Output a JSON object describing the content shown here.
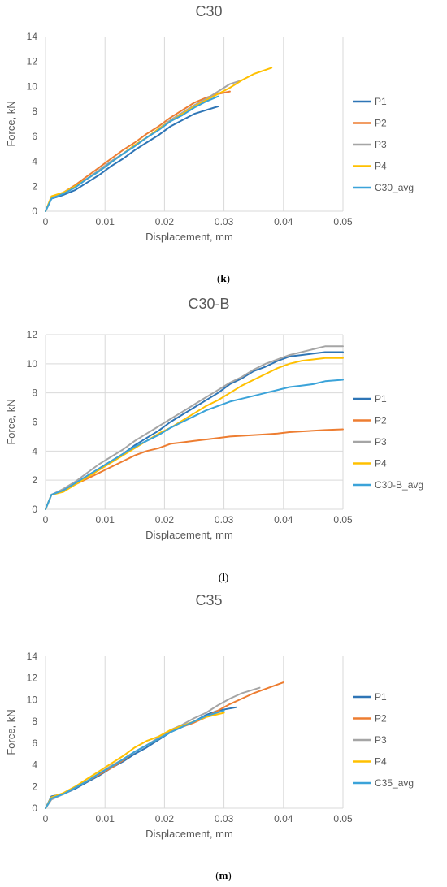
{
  "captions": [
    "k",
    "l",
    "m"
  ],
  "chart_data": [
    {
      "type": "line",
      "title": "C30",
      "xlabel": "Displacement, mm",
      "ylabel": "Force, kN",
      "xlim": [
        0,
        0.05
      ],
      "ylim": [
        0,
        14
      ],
      "xticks": [
        0,
        0.01,
        0.02,
        0.03,
        0.04,
        0.05
      ],
      "yticks": [
        0,
        2,
        4,
        6,
        8,
        10,
        12,
        14
      ],
      "xtick_labels": [
        "0",
        "0.01",
        "0.02",
        "0.03",
        "0.04",
        "0.05"
      ],
      "ytick_labels": [
        "0",
        "2",
        "4",
        "6",
        "8",
        "10",
        "12",
        "14"
      ],
      "grid": "vertical",
      "legend": "right",
      "series": [
        {
          "name": "P1",
          "color": "#2E75B6",
          "x": [
            0,
            0.001,
            0.003,
            0.005,
            0.007,
            0.009,
            0.011,
            0.013,
            0.015,
            0.017,
            0.019,
            0.021,
            0.023,
            0.025,
            0.027,
            0.029
          ],
          "y": [
            0,
            1.0,
            1.3,
            1.7,
            2.3,
            2.9,
            3.6,
            4.2,
            4.9,
            5.5,
            6.1,
            6.8,
            7.3,
            7.8,
            8.1,
            8.4
          ]
        },
        {
          "name": "P2",
          "color": "#ED7D31",
          "x": [
            0,
            0.001,
            0.003,
            0.005,
            0.007,
            0.009,
            0.011,
            0.013,
            0.015,
            0.017,
            0.019,
            0.021,
            0.023,
            0.025,
            0.027,
            0.029,
            0.031
          ],
          "y": [
            0,
            1.1,
            1.5,
            2.1,
            2.8,
            3.5,
            4.2,
            4.9,
            5.5,
            6.2,
            6.8,
            7.5,
            8.1,
            8.7,
            9.1,
            9.4,
            9.6
          ]
        },
        {
          "name": "P3",
          "color": "#A5A5A5",
          "x": [
            0,
            0.001,
            0.003,
            0.005,
            0.007,
            0.009,
            0.011,
            0.013,
            0.015,
            0.017,
            0.019,
            0.021,
            0.023,
            0.025,
            0.027,
            0.029,
            0.031,
            0.033
          ],
          "y": [
            0,
            1.1,
            1.5,
            2.0,
            2.6,
            3.3,
            4.0,
            4.6,
            5.3,
            5.9,
            6.6,
            7.3,
            7.9,
            8.5,
            9.0,
            9.6,
            10.2,
            10.5
          ]
        },
        {
          "name": "P4",
          "color": "#FFC000",
          "x": [
            0,
            0.001,
            0.003,
            0.005,
            0.007,
            0.009,
            0.011,
            0.013,
            0.015,
            0.017,
            0.019,
            0.021,
            0.023,
            0.025,
            0.027,
            0.029,
            0.031,
            0.033,
            0.035,
            0.038
          ],
          "y": [
            0,
            1.2,
            1.5,
            2.0,
            2.6,
            3.2,
            3.9,
            4.6,
            5.3,
            5.9,
            6.6,
            7.2,
            7.8,
            8.4,
            8.9,
            9.4,
            9.9,
            10.5,
            11.0,
            11.5
          ]
        },
        {
          "name": "C30_avg",
          "color": "#3BA3D9",
          "x": [
            0,
            0.001,
            0.003,
            0.005,
            0.007,
            0.009,
            0.011,
            0.013,
            0.015,
            0.017,
            0.019,
            0.021,
            0.023,
            0.025,
            0.027,
            0.029
          ],
          "y": [
            0,
            1.0,
            1.4,
            1.9,
            2.6,
            3.2,
            3.9,
            4.6,
            5.2,
            5.9,
            6.5,
            7.2,
            7.7,
            8.3,
            8.8,
            9.2
          ]
        }
      ]
    },
    {
      "type": "line",
      "title": "C30-B",
      "xlabel": "Displacement, mm",
      "ylabel": "Force, kN",
      "xlim": [
        0,
        0.05
      ],
      "ylim": [
        0,
        12
      ],
      "xticks": [
        0,
        0.01,
        0.02,
        0.03,
        0.04,
        0.05
      ],
      "yticks": [
        0,
        2,
        4,
        6,
        8,
        10,
        12
      ],
      "xtick_labels": [
        "0",
        "0.01",
        "0.02",
        "0.03",
        "0.04",
        "0.05"
      ],
      "ytick_labels": [
        "0",
        "2",
        "4",
        "6",
        "8",
        "10",
        "12"
      ],
      "grid": "both",
      "legend": "right",
      "series": [
        {
          "name": "P1",
          "color": "#2E75B6",
          "x": [
            0,
            0.001,
            0.003,
            0.005,
            0.007,
            0.009,
            0.011,
            0.013,
            0.015,
            0.017,
            0.019,
            0.021,
            0.023,
            0.025,
            0.027,
            0.029,
            0.031,
            0.033,
            0.035,
            0.037,
            0.039,
            0.041,
            0.043,
            0.045,
            0.047,
            0.05
          ],
          "y": [
            0,
            1.0,
            1.3,
            1.8,
            2.3,
            2.8,
            3.3,
            3.8,
            4.4,
            4.9,
            5.4,
            6.0,
            6.5,
            7.0,
            7.5,
            8.0,
            8.6,
            9.0,
            9.5,
            9.8,
            10.2,
            10.5,
            10.6,
            10.7,
            10.8,
            10.8
          ]
        },
        {
          "name": "P2",
          "color": "#ED7D31",
          "x": [
            0,
            0.001,
            0.003,
            0.005,
            0.007,
            0.009,
            0.011,
            0.013,
            0.015,
            0.017,
            0.019,
            0.021,
            0.023,
            0.025,
            0.027,
            0.029,
            0.031,
            0.033,
            0.035,
            0.037,
            0.039,
            0.041,
            0.043,
            0.045,
            0.047,
            0.05
          ],
          "y": [
            0,
            1.0,
            1.3,
            1.7,
            2.1,
            2.5,
            2.9,
            3.3,
            3.7,
            4.0,
            4.2,
            4.5,
            4.6,
            4.7,
            4.8,
            4.9,
            5.0,
            5.05,
            5.1,
            5.15,
            5.2,
            5.3,
            5.35,
            5.4,
            5.45,
            5.5
          ]
        },
        {
          "name": "P3",
          "color": "#A5A5A5",
          "x": [
            0,
            0.001,
            0.003,
            0.005,
            0.007,
            0.009,
            0.011,
            0.013,
            0.015,
            0.017,
            0.019,
            0.021,
            0.023,
            0.025,
            0.027,
            0.029,
            0.031,
            0.033,
            0.035,
            0.037,
            0.039,
            0.041,
            0.043,
            0.045,
            0.047,
            0.05
          ],
          "y": [
            0,
            1.0,
            1.4,
            1.9,
            2.5,
            3.1,
            3.6,
            4.1,
            4.7,
            5.2,
            5.7,
            6.2,
            6.7,
            7.2,
            7.7,
            8.2,
            8.7,
            9.1,
            9.6,
            10.0,
            10.3,
            10.6,
            10.8,
            11.0,
            11.2,
            11.2
          ]
        },
        {
          "name": "P4",
          "color": "#FFC000",
          "x": [
            0,
            0.001,
            0.003,
            0.005,
            0.007,
            0.009,
            0.011,
            0.013,
            0.015,
            0.017,
            0.019,
            0.021,
            0.023,
            0.025,
            0.027,
            0.029,
            0.031,
            0.033,
            0.035,
            0.037,
            0.039,
            0.041,
            0.043,
            0.045,
            0.047,
            0.05
          ],
          "y": [
            0,
            1.0,
            1.2,
            1.7,
            2.2,
            2.7,
            3.2,
            3.7,
            4.2,
            4.7,
            5.2,
            5.6,
            6.1,
            6.6,
            7.1,
            7.5,
            8.0,
            8.5,
            8.9,
            9.3,
            9.7,
            10.0,
            10.2,
            10.3,
            10.4,
            10.4
          ]
        },
        {
          "name": "C30-B_avg",
          "color": "#3BA3D9",
          "x": [
            0,
            0.001,
            0.003,
            0.005,
            0.007,
            0.009,
            0.011,
            0.013,
            0.015,
            0.017,
            0.019,
            0.021,
            0.023,
            0.025,
            0.027,
            0.029,
            0.031,
            0.033,
            0.035,
            0.037,
            0.039,
            0.041,
            0.043,
            0.045,
            0.047,
            0.05
          ],
          "y": [
            0,
            1.0,
            1.3,
            1.8,
            2.3,
            2.8,
            3.3,
            3.8,
            4.3,
            4.7,
            5.1,
            5.6,
            6.0,
            6.4,
            6.8,
            7.1,
            7.4,
            7.6,
            7.8,
            8.0,
            8.2,
            8.4,
            8.5,
            8.6,
            8.8,
            8.9
          ]
        }
      ]
    },
    {
      "type": "line",
      "title": "C35",
      "xlabel": "Displacement, mm",
      "ylabel": "Force, kN",
      "xlim": [
        0,
        0.05
      ],
      "ylim": [
        0,
        14
      ],
      "xticks": [
        0,
        0.01,
        0.02,
        0.03,
        0.04,
        0.05
      ],
      "yticks": [
        0,
        2,
        4,
        6,
        8,
        10,
        12,
        14
      ],
      "xtick_labels": [
        "0",
        "0.01",
        "0.02",
        "0.03",
        "0.04",
        "0.05"
      ],
      "ytick_labels": [
        "0",
        "2",
        "4",
        "6",
        "8",
        "10",
        "12",
        "14"
      ],
      "grid": "vertical",
      "legend": "right",
      "series": [
        {
          "name": "P1",
          "color": "#2E75B6",
          "x": [
            0,
            0.001,
            0.003,
            0.005,
            0.007,
            0.009,
            0.011,
            0.013,
            0.015,
            0.017,
            0.019,
            0.021,
            0.023,
            0.025,
            0.027,
            0.029,
            0.032
          ],
          "y": [
            0,
            1.1,
            1.3,
            1.8,
            2.4,
            3.0,
            3.7,
            4.3,
            5.0,
            5.6,
            6.3,
            7.0,
            7.5,
            8.0,
            8.6,
            9.0,
            9.3
          ]
        },
        {
          "name": "P2",
          "color": "#ED7D31",
          "x": [
            0,
            0.001,
            0.003,
            0.005,
            0.007,
            0.009,
            0.011,
            0.013,
            0.015,
            0.017,
            0.019,
            0.021,
            0.023,
            0.025,
            0.027,
            0.029,
            0.031,
            0.033,
            0.035,
            0.037,
            0.04
          ],
          "y": [
            0,
            0.9,
            1.3,
            1.9,
            2.5,
            3.1,
            3.7,
            4.4,
            5.2,
            5.8,
            6.4,
            7.1,
            7.5,
            7.9,
            8.4,
            9.0,
            9.6,
            10.1,
            10.6,
            11.0,
            11.6
          ]
        },
        {
          "name": "P3",
          "color": "#A5A5A5",
          "x": [
            0,
            0.001,
            0.003,
            0.005,
            0.007,
            0.009,
            0.011,
            0.013,
            0.015,
            0.017,
            0.019,
            0.021,
            0.023,
            0.025,
            0.027,
            0.029,
            0.031,
            0.033,
            0.036
          ],
          "y": [
            0,
            0.8,
            1.3,
            1.9,
            2.5,
            3.2,
            3.9,
            4.5,
            5.2,
            5.8,
            6.5,
            7.2,
            7.7,
            8.3,
            8.8,
            9.5,
            10.1,
            10.6,
            11.1
          ]
        },
        {
          "name": "P4",
          "color": "#FFC000",
          "x": [
            0,
            0.001,
            0.003,
            0.005,
            0.007,
            0.009,
            0.011,
            0.013,
            0.015,
            0.017,
            0.019,
            0.021,
            0.023,
            0.025,
            0.027,
            0.03
          ],
          "y": [
            0,
            1.0,
            1.4,
            2.0,
            2.7,
            3.4,
            4.1,
            4.8,
            5.6,
            6.2,
            6.6,
            7.2,
            7.6,
            8.0,
            8.4,
            8.8
          ]
        },
        {
          "name": "C35_avg",
          "color": "#3BA3D9",
          "x": [
            0,
            0.001,
            0.003,
            0.005,
            0.007,
            0.009,
            0.011,
            0.013,
            0.015,
            0.017,
            0.019,
            0.021,
            0.023,
            0.025,
            0.027,
            0.03
          ],
          "y": [
            0,
            0.9,
            1.3,
            1.9,
            2.5,
            3.2,
            3.8,
            4.5,
            5.2,
            5.8,
            6.4,
            7.0,
            7.5,
            8.0,
            8.5,
            9.0
          ]
        }
      ]
    }
  ]
}
